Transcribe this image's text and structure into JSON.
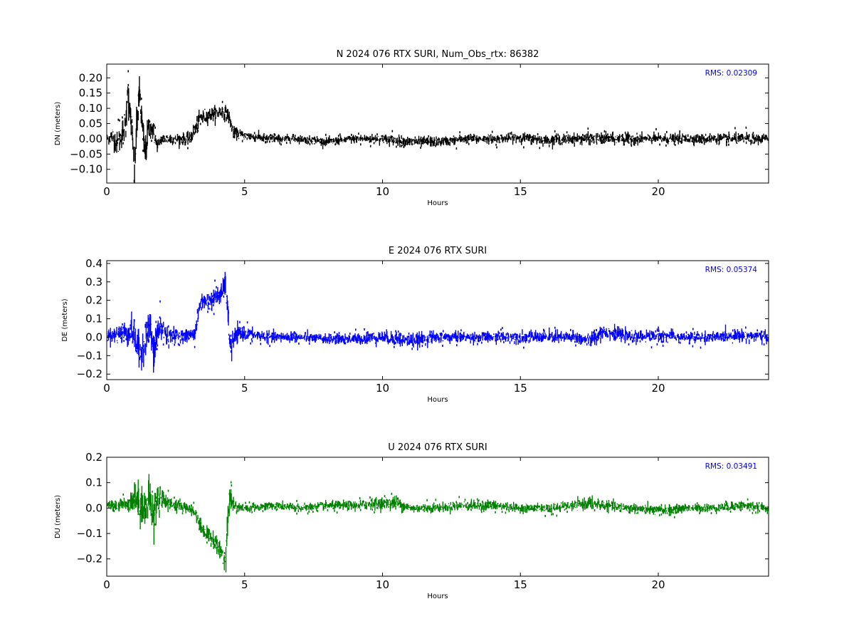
{
  "chart_data": [
    {
      "type": "scatter",
      "title": "N 2024 076 RTX  SURI, Num_Obs_rtx: 86382",
      "xlabel": "Hours",
      "ylabel": "DN (meters)",
      "xlim": [
        0,
        24
      ],
      "ylim": [
        -0.145,
        0.245
      ],
      "xticks": [
        0,
        5,
        10,
        15,
        20
      ],
      "yticks": [
        -0.1,
        -0.05,
        0.0,
        0.05,
        0.1,
        0.15,
        0.2
      ],
      "ytick_labels": [
        "−0.10",
        "−0.05",
        "0.00",
        "0.05",
        "0.10",
        "0.15",
        "0.20"
      ],
      "annotation": "RMS:  0.02309",
      "annotation_color": "#0000ff",
      "color": "#000000",
      "grid": false,
      "series": [
        {
          "x": [
            0.0,
            0.2,
            0.4,
            0.6,
            0.7,
            0.75,
            0.8,
            0.9,
            1.0,
            1.1,
            1.2,
            1.3,
            1.4,
            1.5,
            1.6,
            1.7,
            1.8,
            2.0,
            2.5,
            3.0,
            3.2,
            3.4,
            3.8,
            4.2,
            4.4,
            4.6,
            5.0,
            6.0,
            7.0,
            8.0,
            9.0,
            10.0,
            11.0,
            12.0,
            13.0,
            14.0,
            15.0,
            16.0,
            17.0,
            18.0,
            19.0,
            20.0,
            21.0,
            22.0,
            23.0,
            24.0
          ],
          "y": [
            0.0,
            0.01,
            -0.02,
            0.03,
            0.05,
            0.18,
            0.12,
            0.05,
            -0.12,
            0.06,
            0.15,
            0.02,
            -0.05,
            0.03,
            0.04,
            0.02,
            -0.02,
            0.0,
            0.0,
            0.0,
            0.03,
            0.07,
            0.08,
            0.09,
            0.08,
            0.02,
            0.01,
            0.0,
            0.0,
            -0.01,
            0.0,
            0.0,
            -0.01,
            -0.01,
            0.0,
            0.0,
            0.005,
            -0.005,
            0.0,
            0.0,
            0.0,
            0.0,
            0.0,
            0.0,
            0.0,
            0.0
          ],
          "noise": [
            0.01,
            0.02,
            0.025,
            0.03,
            0.035,
            0.04,
            0.04,
            0.04,
            0.04,
            0.04,
            0.04,
            0.04,
            0.035,
            0.03,
            0.025,
            0.02,
            0.015,
            0.012,
            0.012,
            0.012,
            0.02,
            0.015,
            0.015,
            0.015,
            0.015,
            0.012,
            0.01,
            0.009,
            0.008,
            0.008,
            0.009,
            0.01,
            0.011,
            0.01,
            0.009,
            0.009,
            0.01,
            0.01,
            0.011,
            0.012,
            0.011,
            0.01,
            0.01,
            0.01,
            0.011,
            0.01
          ]
        }
      ]
    },
    {
      "type": "scatter",
      "title": "E 2024 076 RTX  SURI",
      "xlabel": "Hours",
      "ylabel": "DE (meters)",
      "xlim": [
        0,
        24
      ],
      "ylim": [
        -0.23,
        0.415
      ],
      "xticks": [
        0,
        5,
        10,
        15,
        20
      ],
      "yticks": [
        -0.2,
        -0.1,
        0.0,
        0.1,
        0.2,
        0.3,
        0.4
      ],
      "ytick_labels": [
        "−0.2",
        "−0.1",
        "0.0",
        "0.1",
        "0.2",
        "0.3",
        "0.4"
      ],
      "annotation": "RMS:  0.05374",
      "annotation_color": "#0000ff",
      "color": "#0000ff",
      "grid": false,
      "series": [
        {
          "x": [
            0.0,
            0.3,
            0.6,
            0.9,
            1.0,
            1.1,
            1.2,
            1.4,
            1.6,
            1.7,
            1.8,
            2.0,
            2.2,
            2.6,
            3.0,
            3.2,
            3.4,
            3.8,
            4.2,
            4.3,
            4.4,
            4.5,
            4.6,
            4.8,
            5.0,
            6.0,
            7.0,
            8.0,
            9.0,
            10.0,
            11.0,
            12.0,
            13.0,
            14.0,
            15.0,
            16.0,
            17.0,
            17.5,
            18.0,
            19.0,
            20.0,
            21.0,
            22.0,
            23.0,
            24.0
          ],
          "y": [
            0.01,
            0.01,
            0.02,
            0.03,
            0.0,
            -0.04,
            -0.1,
            0.0,
            0.05,
            -0.12,
            0.02,
            0.05,
            0.0,
            0.01,
            0.01,
            0.02,
            0.19,
            0.2,
            0.24,
            0.3,
            0.1,
            -0.07,
            -0.01,
            0.02,
            0.02,
            0.0,
            0.0,
            -0.01,
            -0.01,
            0.0,
            -0.02,
            0.0,
            0.0,
            0.0,
            0.0,
            0.0,
            0.0,
            -0.02,
            0.03,
            0.0,
            0.01,
            0.0,
            0.0,
            0.01,
            0.0
          ],
          "noise": [
            0.02,
            0.03,
            0.04,
            0.05,
            0.05,
            0.06,
            0.06,
            0.06,
            0.07,
            0.07,
            0.06,
            0.05,
            0.035,
            0.02,
            0.02,
            0.025,
            0.03,
            0.03,
            0.035,
            0.04,
            0.05,
            0.05,
            0.035,
            0.025,
            0.02,
            0.018,
            0.016,
            0.016,
            0.018,
            0.022,
            0.025,
            0.02,
            0.018,
            0.018,
            0.02,
            0.02,
            0.022,
            0.025,
            0.025,
            0.02,
            0.02,
            0.018,
            0.018,
            0.02,
            0.02
          ]
        }
      ]
    },
    {
      "type": "scatter",
      "title": "U 2024 076 RTX  SURI",
      "xlabel": "Hours",
      "ylabel": "DU (meters)",
      "xlim": [
        0,
        24
      ],
      "ylim": [
        -0.268,
        0.2
      ],
      "xticks": [
        0,
        5,
        10,
        15,
        20
      ],
      "yticks": [
        -0.2,
        -0.1,
        0.0,
        0.1,
        0.2
      ],
      "ytick_labels": [
        "−0.2",
        "−0.1",
        "0.0",
        "0.1",
        "0.2"
      ],
      "annotation": "RMS:  0.03491",
      "annotation_color": "#0000ff",
      "color": "#008000",
      "grid": false,
      "series": [
        {
          "x": [
            0.0,
            0.4,
            0.8,
            1.0,
            1.2,
            1.4,
            1.6,
            1.7,
            1.8,
            2.0,
            2.2,
            2.6,
            3.0,
            3.2,
            3.4,
            3.6,
            3.8,
            4.0,
            4.2,
            4.3,
            4.4,
            4.5,
            4.6,
            4.8,
            5.0,
            6.0,
            7.0,
            8.0,
            9.0,
            10.0,
            10.5,
            11.0,
            12.0,
            13.0,
            14.0,
            15.0,
            16.0,
            17.0,
            17.5,
            18.0,
            19.0,
            20.0,
            21.0,
            22.0,
            23.0,
            24.0
          ],
          "y": [
            0.01,
            0.01,
            0.02,
            0.04,
            0.02,
            0.0,
            0.04,
            -0.05,
            0.03,
            0.04,
            0.02,
            0.01,
            0.0,
            -0.02,
            -0.07,
            -0.1,
            -0.12,
            -0.15,
            -0.19,
            -0.2,
            -0.02,
            0.05,
            0.01,
            0.0,
            0.0,
            0.01,
            0.0,
            0.01,
            0.01,
            0.02,
            0.02,
            0.0,
            0.0,
            0.01,
            0.01,
            0.0,
            0.0,
            0.01,
            0.02,
            0.01,
            0.0,
            -0.01,
            0.0,
            0.0,
            0.01,
            0.0
          ],
          "noise": [
            0.01,
            0.015,
            0.02,
            0.04,
            0.05,
            0.05,
            0.06,
            0.06,
            0.05,
            0.03,
            0.02,
            0.015,
            0.012,
            0.012,
            0.02,
            0.02,
            0.02,
            0.025,
            0.03,
            0.04,
            0.04,
            0.03,
            0.02,
            0.012,
            0.01,
            0.01,
            0.01,
            0.01,
            0.012,
            0.015,
            0.018,
            0.012,
            0.01,
            0.012,
            0.012,
            0.01,
            0.01,
            0.012,
            0.015,
            0.012,
            0.012,
            0.012,
            0.01,
            0.01,
            0.012,
            0.01
          ]
        }
      ]
    }
  ]
}
